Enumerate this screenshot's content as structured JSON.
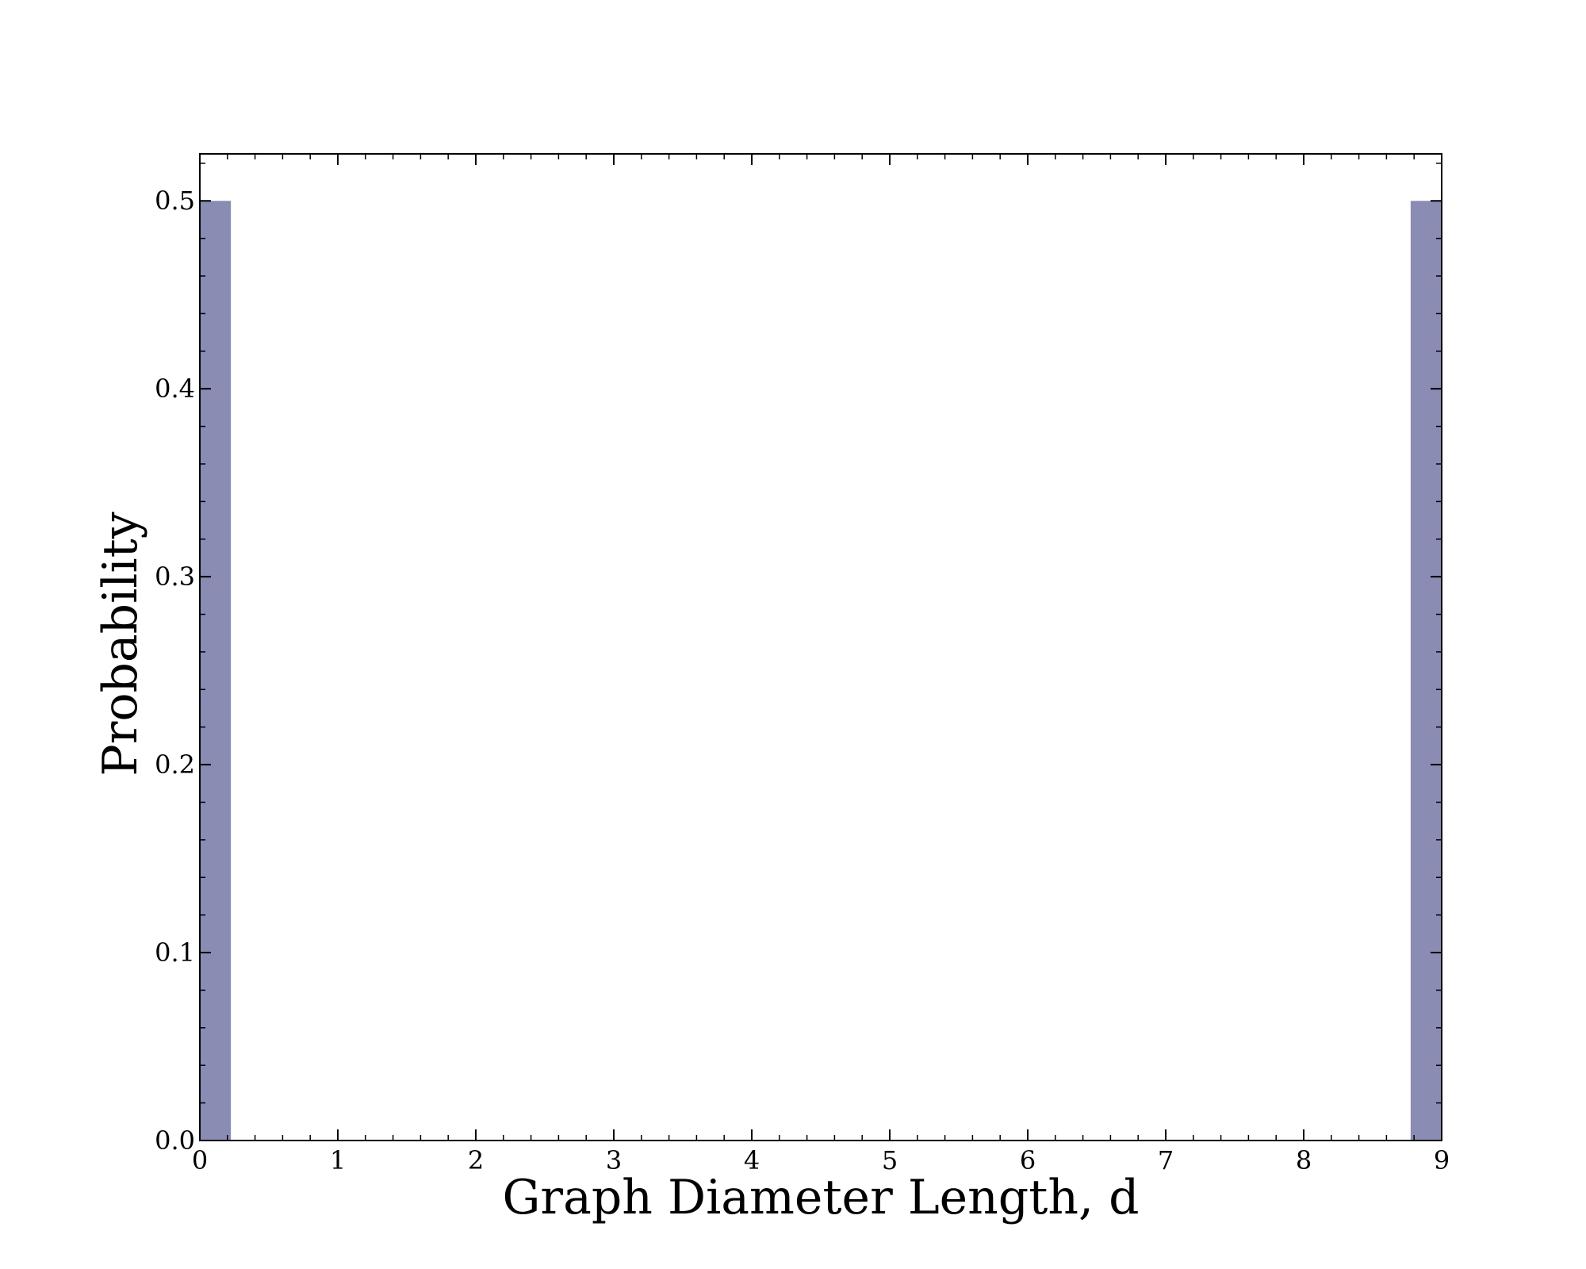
{
  "chart_data": {
    "type": "bar",
    "title": "",
    "xlabel": "Graph Diameter Length, d",
    "ylabel": "Probability",
    "xlim": [
      0,
      9
    ],
    "ylim": [
      0,
      0.525
    ],
    "x_ticks": [
      0,
      1,
      2,
      3,
      4,
      5,
      6,
      7,
      8,
      9
    ],
    "x_tick_labels": [
      "0",
      "1",
      "2",
      "3",
      "4",
      "5",
      "6",
      "7",
      "8",
      "9"
    ],
    "y_ticks": [
      0.0,
      0.1,
      0.2,
      0.3,
      0.4,
      0.5
    ],
    "y_tick_labels": [
      "0.0",
      "0.1",
      "0.2",
      "0.3",
      "0.4",
      "0.5"
    ],
    "bars": [
      {
        "x_start": 0.0,
        "x_end": 0.225,
        "value": 0.5
      },
      {
        "x_start": 8.775,
        "x_end": 9.0,
        "value": 0.5
      }
    ],
    "bar_color": "#8a8cb4",
    "grid": false,
    "legend": "none"
  }
}
